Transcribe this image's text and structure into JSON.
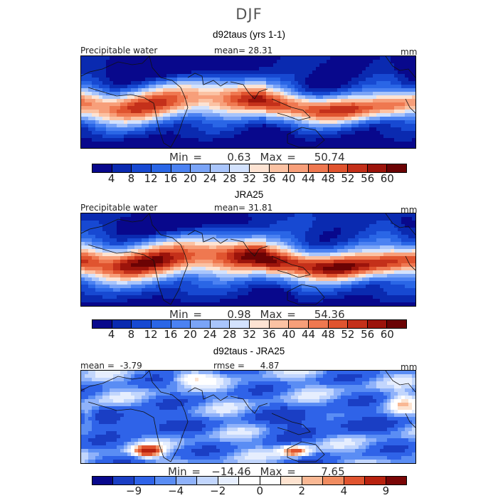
{
  "season": "DJF",
  "palette_abs": [
    "#08088c",
    "#0a2ab0",
    "#1749d2",
    "#2a66e6",
    "#4b82f2",
    "#7aa4f7",
    "#a9c5fb",
    "#d3e2fd",
    "#fde3d3",
    "#fbc2a3",
    "#f79f7a",
    "#ef7850",
    "#e0542f",
    "#c4301a",
    "#9c140b",
    "#6b0304"
  ],
  "palette_diff": [
    "#08088c",
    "#1a3ec4",
    "#2f63e8",
    "#5a8df4",
    "#8fb2fa",
    "#c2d6fd",
    "#e6eefe",
    "#ffffff",
    "#ffffff",
    "#fde3d0",
    "#f9b894",
    "#f08c60",
    "#e0542f",
    "#b8220f",
    "#7a0606"
  ],
  "chart_data": [
    {
      "type": "heatmap",
      "title": "d92taus (yrs 1-1)",
      "variable": "Precipitable water",
      "mean_label": "mean=",
      "mean": "28.31",
      "units": "mm",
      "min_label": "Min =",
      "min": "0.63",
      "max_label": "Max =",
      "max": "50.74",
      "levels": [
        4,
        8,
        12,
        16,
        20,
        24,
        28,
        32,
        36,
        40,
        44,
        48,
        52,
        56,
        60
      ],
      "tick_labels": [
        "4",
        "8",
        "12",
        "16",
        "20",
        "24",
        "28",
        "32",
        "36",
        "40",
        "44",
        "48",
        "52",
        "56",
        "60"
      ]
    },
    {
      "type": "heatmap",
      "title": "JRA25",
      "variable": "Precipitable water",
      "mean_label": "mean=",
      "mean": "31.81",
      "units": "mm",
      "min_label": "Min =",
      "min": "0.98",
      "max_label": "Max =",
      "max": "54.36",
      "levels": [
        4,
        8,
        12,
        16,
        20,
        24,
        28,
        32,
        36,
        40,
        44,
        48,
        52,
        56,
        60
      ],
      "tick_labels": [
        "4",
        "8",
        "12",
        "16",
        "20",
        "24",
        "28",
        "32",
        "36",
        "40",
        "44",
        "48",
        "52",
        "56",
        "60"
      ]
    },
    {
      "type": "heatmap",
      "title": "d92taus - JRA25",
      "mean_label": "mean =",
      "mean": "-3.79",
      "rmse_label": "rmse =",
      "rmse": "4.87",
      "units": "mm",
      "min_label": "Min =",
      "min": "−14.46",
      "max_label": "Max =",
      "max": "7.65",
      "levels": [
        -9,
        -6,
        -4,
        -3,
        -2,
        -1,
        0,
        1,
        2,
        3,
        4,
        6,
        9
      ],
      "tick_labels": [
        "−9",
        "−4",
        "−2",
        "0",
        "2",
        "4",
        "9"
      ]
    }
  ]
}
